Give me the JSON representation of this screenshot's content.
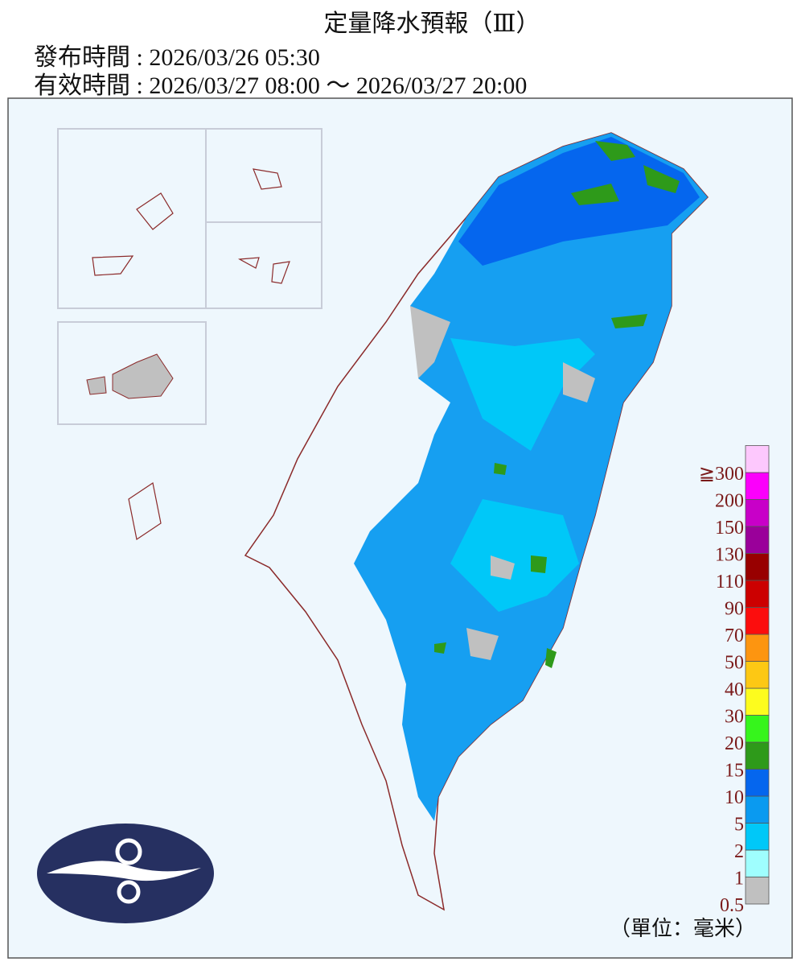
{
  "header": {
    "title": "定量降水預報（Ⅲ）",
    "issued": "發布時間 : 2026/03/26 05:30",
    "valid": "有效時間 : 2026/03/27 08:00 ～ 2026/03/27 20:00"
  },
  "legend": {
    "unit": "（單位：毫米）",
    "items": [
      {
        "label": "0.5",
        "color": "#c0c0c0"
      },
      {
        "label": "1",
        "color": "#9ffefe"
      },
      {
        "label": "2",
        "color": "#00c8f8"
      },
      {
        "label": "5",
        "color": "#0a9af0"
      },
      {
        "label": "10",
        "color": "#0566ee"
      },
      {
        "label": "15",
        "color": "#2e9a1a"
      },
      {
        "label": "20",
        "color": "#36f51c"
      },
      {
        "label": "30",
        "color": "#fdfc1e"
      },
      {
        "label": "40",
        "color": "#fdc814"
      },
      {
        "label": "50",
        "color": "#fd9510"
      },
      {
        "label": "70",
        "color": "#fc0d0d"
      },
      {
        "label": "90",
        "color": "#cc0000"
      },
      {
        "label": "110",
        "color": "#980000"
      },
      {
        "label": "130",
        "color": "#9a009a"
      },
      {
        "label": "150",
        "color": "#c800c8"
      },
      {
        "label": "200",
        "color": "#fb00fb"
      },
      {
        "label": "≧300",
        "color": "#fdc8fd"
      }
    ]
  }
}
